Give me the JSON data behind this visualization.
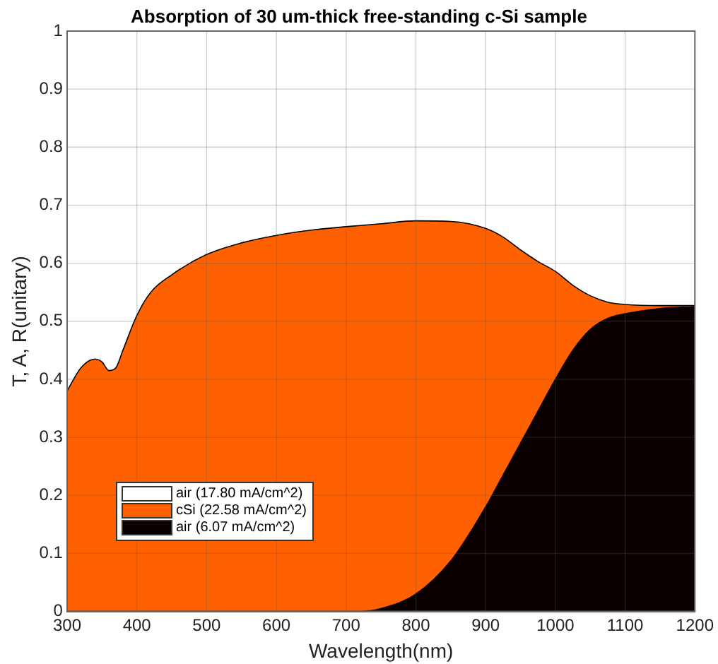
{
  "chart_data": {
    "type": "area",
    "title": "Absorption of 30 um-thick free-standing c-Si sample",
    "xlabel": "Wavelength(nm)",
    "ylabel": "T, A, R(unitary)",
    "x": [
      300,
      320,
      340,
      350,
      360,
      370,
      380,
      400,
      420,
      450,
      500,
      550,
      600,
      650,
      700,
      720,
      750,
      800,
      850,
      900,
      925,
      950,
      975,
      1000,
      1025,
      1050,
      1075,
      1100,
      1150,
      1200
    ],
    "stacked": true,
    "series": [
      {
        "name": "air (6.07 mA/cm^2)",
        "color": "#0a0000",
        "values": [
          0,
          0,
          0,
          0,
          0,
          0,
          0,
          0,
          0,
          0,
          0,
          0,
          0,
          0,
          0,
          0,
          0.005,
          0.03,
          0.087,
          0.18,
          0.235,
          0.29,
          0.345,
          0.4,
          0.45,
          0.486,
          0.505,
          0.513,
          0.522,
          0.525
        ]
      },
      {
        "name": "cSi (22.58 mA/cm^2)",
        "color": "#ff6000",
        "values": [
          0.38,
          0.42,
          0.435,
          0.43,
          0.415,
          0.42,
          0.45,
          0.51,
          0.55,
          0.58,
          0.615,
          0.635,
          0.648,
          0.657,
          0.663,
          0.665,
          0.663,
          0.643,
          0.585,
          0.48,
          0.41,
          0.333,
          0.258,
          0.186,
          0.112,
          0.058,
          0.028,
          0.016,
          0.005,
          0.002
        ]
      },
      {
        "name": "air (17.80 mA/cm^2)",
        "color": "#ffffff",
        "values": [
          0.62,
          0.58,
          0.565,
          0.57,
          0.585,
          0.58,
          0.55,
          0.49,
          0.45,
          0.42,
          0.385,
          0.365,
          0.352,
          0.343,
          0.337,
          0.335,
          0.332,
          0.327,
          0.328,
          0.34,
          0.355,
          0.377,
          0.397,
          0.414,
          0.438,
          0.456,
          0.467,
          0.471,
          0.473,
          0.473
        ]
      }
    ],
    "xlim": [
      300,
      1200
    ],
    "xticks": [
      300,
      400,
      500,
      600,
      700,
      800,
      900,
      1000,
      1100,
      1200
    ],
    "ylim": [
      0,
      1
    ],
    "yticks": [
      0,
      0.1,
      0.2,
      0.3,
      0.4,
      0.5,
      0.6,
      0.7,
      0.8,
      0.9,
      1
    ],
    "grid": true,
    "legend": "bottom left"
  }
}
